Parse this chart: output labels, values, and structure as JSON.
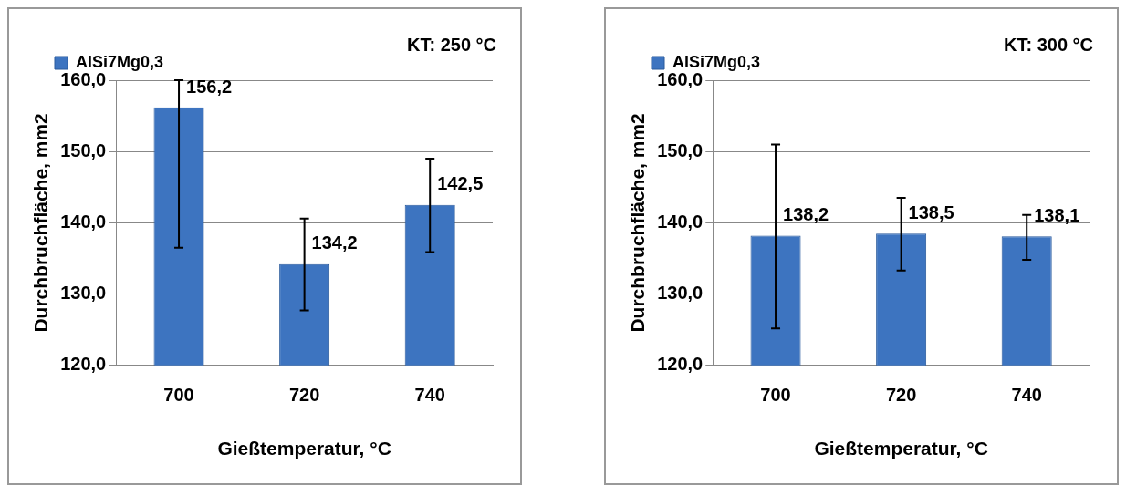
{
  "chart_data": [
    {
      "type": "bar",
      "categories": [
        "700",
        "720",
        "740"
      ],
      "xlabel": "Gießtemperatur, °C",
      "ylabel": "Durchbruchfläche, mm2",
      "annotations": [
        "KT: 250 °C"
      ],
      "series": [
        {
          "name": "AlSi7Mg0,3",
          "color": "#3d74c0",
          "values": [
            156.2,
            134.2,
            142.5
          ],
          "errors": [
            [
              136.5,
              160.0
            ],
            [
              127.7,
              140.6
            ],
            [
              135.9,
              149.0
            ]
          ],
          "value_labels": [
            "156,2",
            "134,2",
            "142,5"
          ]
        }
      ],
      "ylim": [
        120,
        160
      ],
      "yticks": [
        {
          "value": 120,
          "label": "120,0"
        },
        {
          "value": 130,
          "label": "130,0"
        },
        {
          "value": 140,
          "label": "140,0"
        },
        {
          "value": 150,
          "label": "150,0"
        },
        {
          "value": 160,
          "label": "160,0"
        }
      ],
      "grid": "y",
      "legend": "top"
    },
    {
      "type": "bar",
      "categories": [
        "700",
        "720",
        "740"
      ],
      "xlabel": "Gießtemperatur, °C",
      "ylabel": "Durchbruchfläche, mm2",
      "annotations": [
        "KT: 300 °C"
      ],
      "series": [
        {
          "name": "AlSi7Mg0,3",
          "color": "#3d74c0",
          "values": [
            138.2,
            138.5,
            138.1
          ],
          "errors": [
            [
              125.2,
              151.0
            ],
            [
              133.3,
              143.5
            ],
            [
              134.8,
              141.1
            ]
          ],
          "value_labels": [
            "138,2",
            "138,5",
            "138,1"
          ]
        }
      ],
      "ylim": [
        120,
        160
      ],
      "yticks": [
        {
          "value": 120,
          "label": "120,0"
        },
        {
          "value": 130,
          "label": "130,0"
        },
        {
          "value": 140,
          "label": "140,0"
        },
        {
          "value": 150,
          "label": "150,0"
        },
        {
          "value": 160,
          "label": "160,0"
        }
      ],
      "grid": "y",
      "legend": "top"
    }
  ]
}
